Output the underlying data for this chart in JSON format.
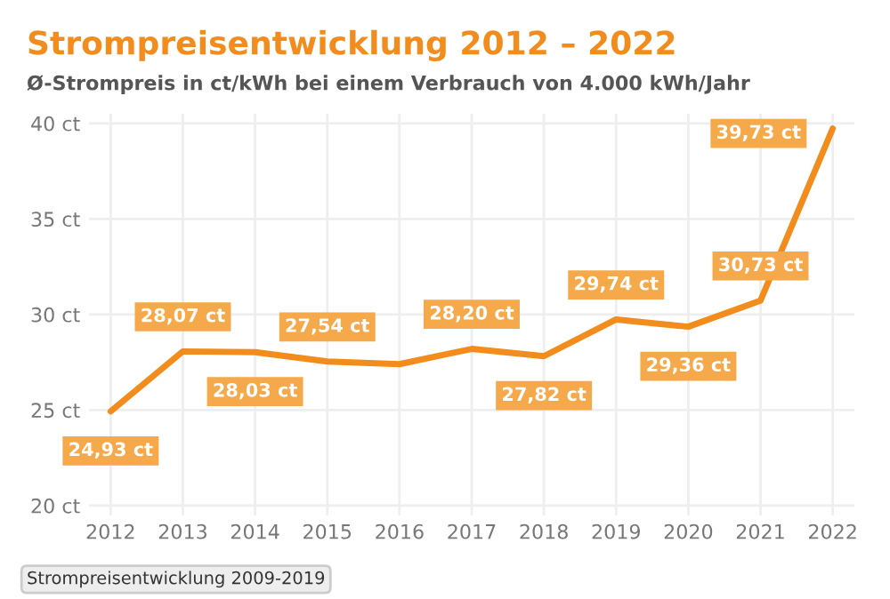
{
  "chart_data": {
    "type": "line",
    "title": "Strompreisentwicklung 2012 – 2022",
    "subtitle": "Ø-Strompreis in ct/kWh bei einem Verbrauch von 4.000 kWh/Jahr",
    "x": [
      2012,
      2013,
      2014,
      2015,
      2016,
      2017,
      2018,
      2019,
      2020,
      2021,
      2022
    ],
    "series": [
      {
        "color": "#f28c1c",
        "values": [
          24.93,
          28.07,
          28.03,
          27.54,
          27.4,
          28.2,
          27.82,
          29.74,
          29.36,
          30.73,
          39.73
        ],
        "value_labels": [
          "24,93 ct",
          "28,07 ct",
          "28,03 ct",
          "27,54 ct",
          null,
          "28,20 ct",
          "27,82 ct",
          "29,74 ct",
          "29,36 ct",
          "30,73 ct",
          "39,73 ct"
        ]
      }
    ],
    "xlim": [
      2011.7,
      2022.3
    ],
    "xticks": [
      2012,
      2013,
      2014,
      2015,
      2016,
      2017,
      2018,
      2019,
      2020,
      2021,
      2022
    ],
    "ylim": [
      19.5,
      40.5
    ],
    "yticks": [
      {
        "value": 20,
        "label": "20 ct"
      },
      {
        "value": 25,
        "label": "25 ct"
      },
      {
        "value": 30,
        "label": "30 ct"
      },
      {
        "value": 35,
        "label": "35 ct"
      },
      {
        "value": 40,
        "label": "40 ct"
      }
    ],
    "grid": true,
    "marker": "none",
    "line_style": "solid",
    "annotations": [
      "Strompreisentwicklung 2009-2019"
    ]
  }
}
